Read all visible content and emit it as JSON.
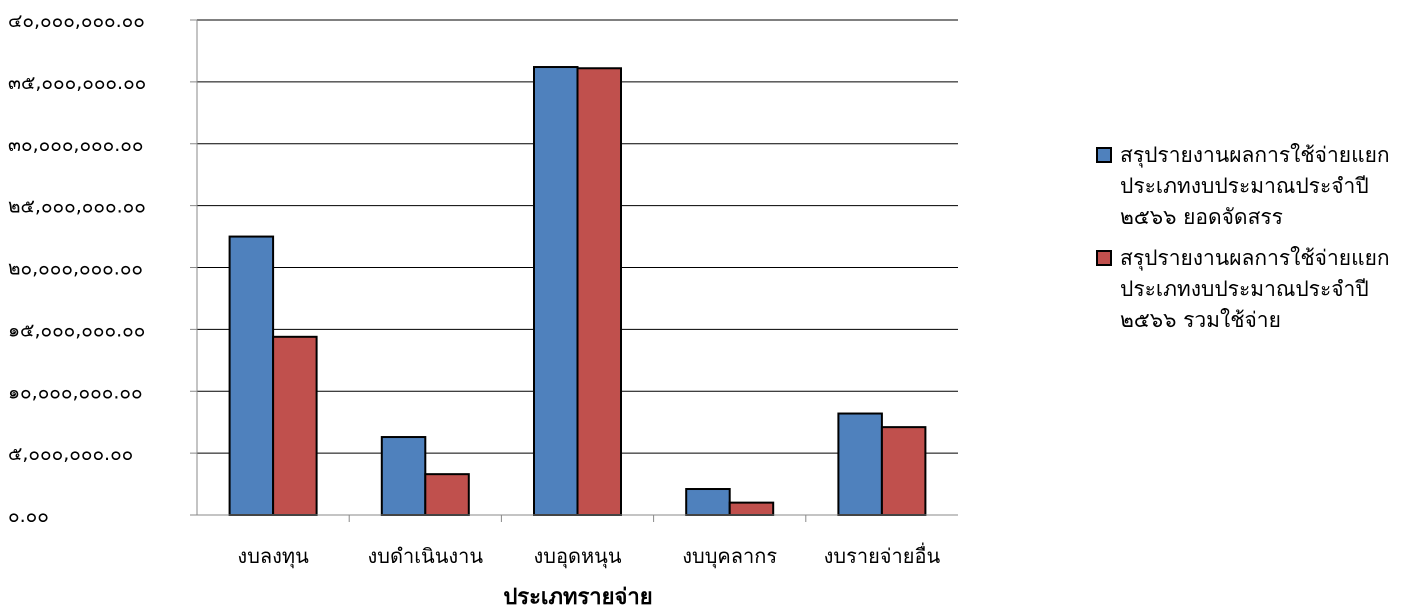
{
  "chart_data": {
    "type": "bar",
    "title": "",
    "xlabel": "ประเภทรายจ่าย",
    "ylabel": "",
    "categories": [
      "งบลงทุน",
      "งบดำเนินงาน",
      "งบอุดหนุน",
      "งบบุคลากร",
      "งบรายจ่ายอื่น"
    ],
    "series": [
      {
        "name": "สรุปรายงานผลการใช้จ่ายแยกประเภทงบประมาณประจำปี ๒๕๖๖ ยอดจัดสรร",
        "color": "#4F81BD",
        "values": [
          22500000,
          6300000,
          36200000,
          2100000,
          8200000
        ]
      },
      {
        "name": "สรุปรายงานผลการใช้จ่ายแยกประเภทงบประมาณประจำปี ๒๕๖๖ รวมใช้จ่าย",
        "color": "#C0504D",
        "values": [
          14400000,
          3300000,
          36100000,
          1000000,
          7100000
        ]
      }
    ],
    "ylim": [
      0,
      40000000
    ],
    "ytick_step": 5000000,
    "ytick_labels": [
      "๐.๐๐",
      "๕,๐๐๐,๐๐๐.๐๐",
      "๑๐,๐๐๐,๐๐๐.๐๐",
      "๑๕,๐๐๐,๐๐๐.๐๐",
      "๒๐,๐๐๐,๐๐๐.๐๐",
      "๒๕,๐๐๐,๐๐๐.๐๐",
      "๓๐,๐๐๐,๐๐๐.๐๐",
      "๓๕,๐๐๐,๐๐๐.๐๐",
      "๔๐,๐๐๐,๐๐๐.๐๐"
    ],
    "grid": true,
    "legend_position": "right"
  }
}
